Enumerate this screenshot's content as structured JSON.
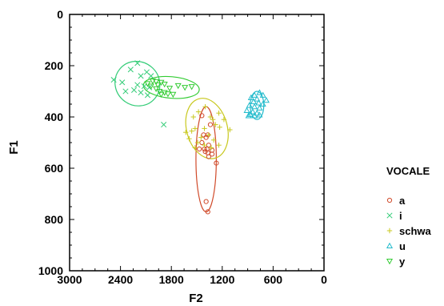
{
  "chart_data": {
    "type": "scatter",
    "xlabel": "F2",
    "ylabel": "F1",
    "xlim": [
      3000,
      0
    ],
    "ylim": [
      1000,
      0
    ],
    "x_reversed": true,
    "y_reversed": true,
    "xticks": [
      3000,
      2400,
      1800,
      1200,
      600,
      0
    ],
    "xtick_labels": [
      "3000",
      "2400",
      "1800",
      "1200",
      "600",
      "0"
    ],
    "yticks": [
      0,
      200,
      400,
      600,
      800,
      1000
    ],
    "ytick_labels": [
      "0",
      "200",
      "400",
      "600",
      "800",
      "1000"
    ],
    "grid": false,
    "legend": {
      "title": "VOCALE",
      "position": "right"
    },
    "series": [
      {
        "name": "a",
        "marker": "circle",
        "color": "#d04a2a",
        "points": [
          [
            1440,
            395
          ],
          [
            1340,
            430
          ],
          [
            1370,
            470
          ],
          [
            1420,
            470
          ],
          [
            1390,
            480
          ],
          [
            1440,
            500
          ],
          [
            1360,
            510
          ],
          [
            1470,
            525
          ],
          [
            1410,
            525
          ],
          [
            1380,
            525
          ],
          [
            1320,
            530
          ],
          [
            1400,
            535
          ],
          [
            1370,
            540
          ],
          [
            1320,
            545
          ],
          [
            1360,
            555
          ],
          [
            1270,
            580
          ],
          [
            1390,
            730
          ],
          [
            1370,
            770
          ]
        ],
        "ellipse": {
          "cx": 1390,
          "cy": 565,
          "rx": 120,
          "ry": 205
        }
      },
      {
        "name": "i",
        "marker": "x",
        "color": "#33cc77",
        "points": [
          [
            2200,
            190
          ],
          [
            2280,
            215
          ],
          [
            2090,
            225
          ],
          [
            2160,
            240
          ],
          [
            2040,
            240
          ],
          [
            2480,
            255
          ],
          [
            2380,
            265
          ],
          [
            2200,
            275
          ],
          [
            2120,
            280
          ],
          [
            2060,
            285
          ],
          [
            2240,
            295
          ],
          [
            2340,
            300
          ],
          [
            2160,
            305
          ],
          [
            2080,
            315
          ],
          [
            1890,
            430
          ]
        ],
        "ellipse": {
          "cx": 2200,
          "cy": 270,
          "rx": 270,
          "ry": 85,
          "angle": 40
        }
      },
      {
        "name": "schwa",
        "marker": "plus",
        "color": "#c8c81e",
        "points": [
          [
            1400,
            360
          ],
          [
            1480,
            380
          ],
          [
            1240,
            385
          ],
          [
            1540,
            400
          ],
          [
            1340,
            400
          ],
          [
            1310,
            410
          ],
          [
            1180,
            410
          ],
          [
            1280,
            430
          ],
          [
            1230,
            440
          ],
          [
            1520,
            445
          ],
          [
            1410,
            445
          ],
          [
            1110,
            450
          ],
          [
            1560,
            455
          ],
          [
            1630,
            460
          ],
          [
            1360,
            470
          ],
          [
            1450,
            480
          ],
          [
            1590,
            485
          ],
          [
            1300,
            490
          ],
          [
            1490,
            500
          ],
          [
            1240,
            510
          ],
          [
            1410,
            510
          ],
          [
            1520,
            520
          ],
          [
            1330,
            520
          ]
        ],
        "ellipse": {
          "cx": 1380,
          "cy": 445,
          "rx": 240,
          "ry": 120,
          "angle": -15
        }
      },
      {
        "name": "u",
        "marker": "triangle-up",
        "color": "#22bbcc",
        "points": [
          [
            760,
            305
          ],
          [
            820,
            315
          ],
          [
            720,
            315
          ],
          [
            860,
            325
          ],
          [
            790,
            330
          ],
          [
            680,
            335
          ],
          [
            830,
            340
          ],
          [
            770,
            345
          ],
          [
            720,
            350
          ],
          [
            880,
            355
          ],
          [
            820,
            360
          ],
          [
            760,
            365
          ],
          [
            910,
            375
          ],
          [
            840,
            380
          ],
          [
            790,
            385
          ],
          [
            870,
            390
          ],
          [
            760,
            392
          ],
          [
            890,
            395
          ],
          [
            820,
            395
          ]
        ],
        "ellipse": {
          "cx": 790,
          "cy": 355,
          "rx": 80,
          "ry": 55
        }
      },
      {
        "name": "y",
        "marker": "triangle-down",
        "color": "#33cc33",
        "points": [
          [
            2020,
            260
          ],
          [
            1980,
            262
          ],
          [
            1920,
            265
          ],
          [
            2080,
            270
          ],
          [
            1880,
            272
          ],
          [
            1960,
            275
          ],
          [
            1720,
            278
          ],
          [
            2040,
            280
          ],
          [
            1560,
            282
          ],
          [
            1640,
            285
          ],
          [
            1820,
            288
          ],
          [
            1980,
            290
          ],
          [
            1940,
            300
          ],
          [
            1880,
            305
          ],
          [
            1840,
            310
          ],
          [
            1920,
            312
          ],
          [
            1780,
            312
          ]
        ],
        "ellipse": {
          "cx": 1800,
          "cy": 285,
          "rx": 330,
          "ry": 42,
          "angle": 5
        }
      }
    ]
  }
}
